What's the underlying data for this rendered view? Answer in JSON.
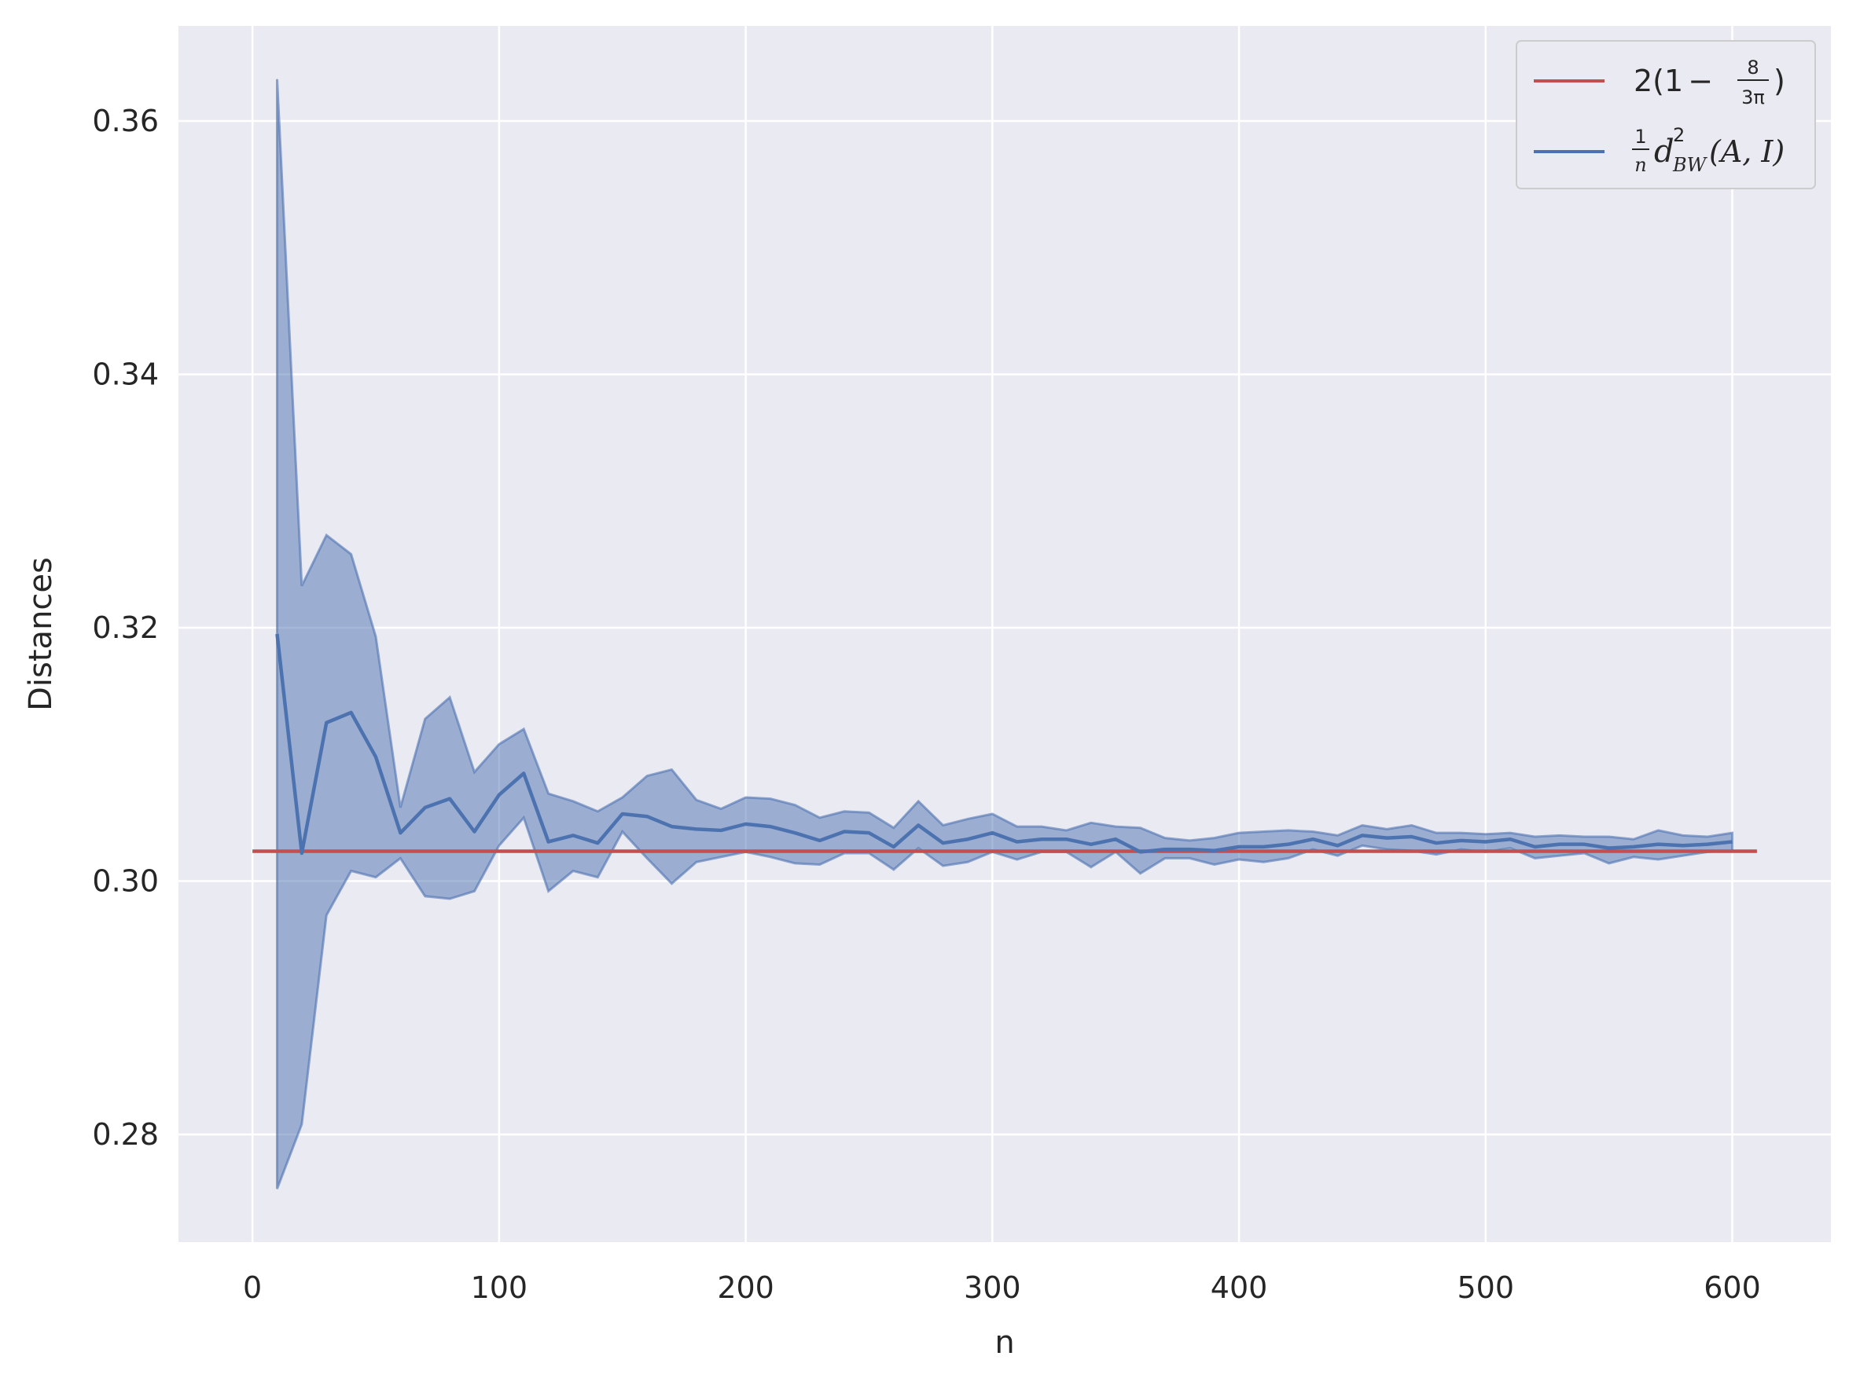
{
  "chart_data": {
    "type": "line",
    "xlabel": "n",
    "ylabel": "Distances",
    "xlim": [
      -30,
      640
    ],
    "ylim": [
      0.2715,
      0.3675
    ],
    "xticks": [
      0,
      100,
      200,
      300,
      400,
      500,
      600
    ],
    "yticks": [
      0.28,
      0.3,
      0.32,
      0.34,
      0.36
    ],
    "xtick_labels": [
      "0",
      "100",
      "200",
      "300",
      "400",
      "500",
      "600"
    ],
    "ytick_labels": [
      "0.28",
      "0.30",
      "0.32",
      "0.34",
      "0.36"
    ],
    "grid": true,
    "legend_position": "top-right",
    "series": [
      {
        "name": "2(1 − 8/3π)",
        "kind": "constant",
        "color": "#c44e52",
        "x": [
          0,
          610
        ],
        "y": [
          0.30235,
          0.30235
        ]
      },
      {
        "name": "1/n d²_BW(A,I)",
        "kind": "mean_with_band",
        "color": "#4c72b0",
        "band_color": "#4c72b0",
        "x": [
          10,
          20,
          30,
          40,
          50,
          60,
          70,
          80,
          90,
          100,
          110,
          120,
          130,
          140,
          150,
          160,
          170,
          180,
          190,
          200,
          210,
          220,
          230,
          240,
          250,
          260,
          270,
          280,
          290,
          300,
          310,
          320,
          330,
          340,
          350,
          360,
          370,
          380,
          390,
          400,
          410,
          420,
          430,
          440,
          450,
          460,
          470,
          480,
          490,
          500,
          510,
          520,
          530,
          540,
          550,
          560,
          570,
          580,
          590,
          600
        ],
        "y": [
          0.3195,
          0.3022,
          0.3125,
          0.3133,
          0.3098,
          0.3038,
          0.3058,
          0.3065,
          0.3039,
          0.3068,
          0.3085,
          0.3031,
          0.3036,
          0.303,
          0.3053,
          0.3051,
          0.3043,
          0.3041,
          0.304,
          0.3045,
          0.3043,
          0.3038,
          0.3032,
          0.3039,
          0.3038,
          0.3027,
          0.3044,
          0.303,
          0.3033,
          0.3038,
          0.3031,
          0.3033,
          0.3033,
          0.3029,
          0.3033,
          0.3023,
          0.3025,
          0.3025,
          0.3024,
          0.3027,
          0.3027,
          0.3029,
          0.3033,
          0.3028,
          0.3036,
          0.3034,
          0.3035,
          0.303,
          0.3032,
          0.3031,
          0.3033,
          0.3027,
          0.3029,
          0.3029,
          0.3026,
          0.3027,
          0.3029,
          0.3028,
          0.3029,
          0.3031
        ],
        "upper": [
          0.3633,
          0.3233,
          0.3273,
          0.3258,
          0.3193,
          0.3058,
          0.3128,
          0.3145,
          0.3086,
          0.3108,
          0.312,
          0.3069,
          0.3063,
          0.3055,
          0.3066,
          0.3083,
          0.3088,
          0.3064,
          0.3057,
          0.3066,
          0.3065,
          0.306,
          0.305,
          0.3055,
          0.3054,
          0.3042,
          0.3063,
          0.3044,
          0.3049,
          0.3053,
          0.3043,
          0.3043,
          0.304,
          0.3046,
          0.3043,
          0.3042,
          0.3034,
          0.3032,
          0.3034,
          0.3038,
          0.3039,
          0.304,
          0.3039,
          0.3036,
          0.3044,
          0.3041,
          0.3044,
          0.3038,
          0.3038,
          0.3037,
          0.3038,
          0.3035,
          0.3036,
          0.3035,
          0.3035,
          0.3033,
          0.304,
          0.3036,
          0.3035,
          0.3038
        ],
        "lower": [
          0.2757,
          0.2808,
          0.2973,
          0.3008,
          0.3003,
          0.3018,
          0.2988,
          0.2986,
          0.2992,
          0.3028,
          0.305,
          0.2992,
          0.3008,
          0.3003,
          0.3039,
          0.3018,
          0.2998,
          0.3015,
          0.3019,
          0.3023,
          0.3019,
          0.3014,
          0.3013,
          0.3022,
          0.3022,
          0.3009,
          0.3026,
          0.3012,
          0.3015,
          0.3023,
          0.3017,
          0.3023,
          0.3023,
          0.3011,
          0.3023,
          0.3006,
          0.3018,
          0.3018,
          0.3013,
          0.3017,
          0.3015,
          0.3018,
          0.3025,
          0.302,
          0.3028,
          0.3025,
          0.3024,
          0.3021,
          0.3025,
          0.3023,
          0.3026,
          0.3018,
          0.302,
          0.3022,
          0.3014,
          0.3019,
          0.3017,
          0.302,
          0.3023,
          0.3024
        ]
      }
    ]
  },
  "legend": {
    "entry_1": {
      "prefix": "2(1",
      "minus": "−",
      "frac_num": "8",
      "frac_den": "3π",
      "suffix": ")"
    },
    "entry_2": {
      "frac_num": "1",
      "frac_den": "n",
      "symbol": "d",
      "superscript": "2",
      "subscript": "BW",
      "args": "(A, I)"
    }
  }
}
